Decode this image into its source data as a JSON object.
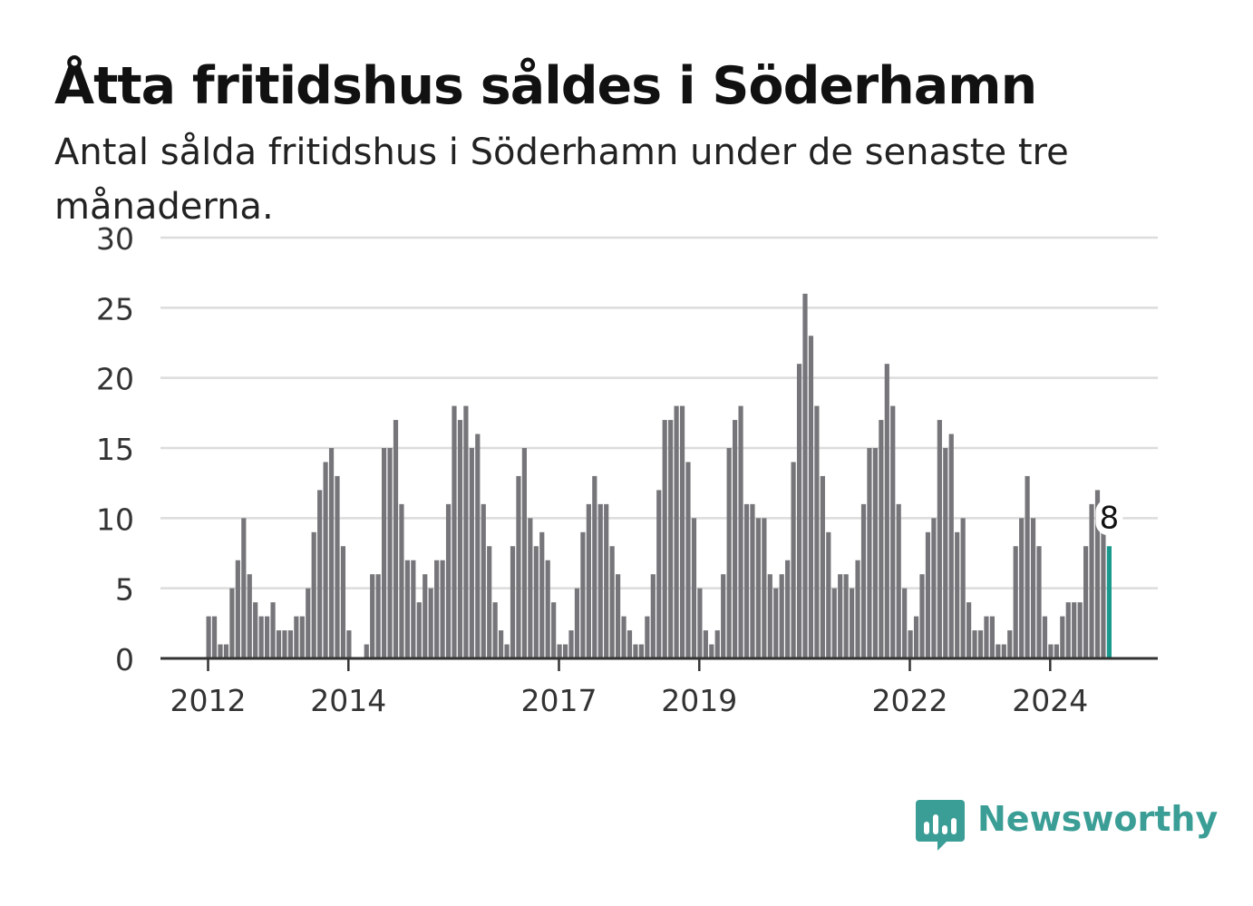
{
  "title": "Åtta fritidshus såldes i Söderhamn",
  "subtitle": "Antal sålda fritidshus i Söderhamn under de senaste tre månaderna.",
  "brand": {
    "name": "Newsworthy",
    "color": "#3a9e96",
    "icon": "newsworthy-chart-bubble-icon"
  },
  "colors": {
    "bar": "#76767a",
    "highlight": "#1a9a8e",
    "grid": "#dcdcdc",
    "axis": "#333333"
  },
  "chart_data": {
    "type": "bar",
    "title": "Åtta fritidshus såldes i Söderhamn",
    "xlabel": "",
    "ylabel": "",
    "ylim": [
      0,
      30
    ],
    "yticks": [
      0,
      5,
      10,
      15,
      20,
      25,
      30
    ],
    "grid": true,
    "x_ticks": [
      "2012",
      "2014",
      "2017",
      "2019",
      "2022",
      "2024"
    ],
    "x_tick_month_index": [
      0,
      24,
      60,
      84,
      120,
      144
    ],
    "start_month": "2012-01",
    "highlight_label": "8",
    "values": [
      3,
      3,
      1,
      1,
      5,
      7,
      10,
      6,
      4,
      3,
      3,
      4,
      2,
      2,
      2,
      3,
      3,
      5,
      9,
      12,
      14,
      15,
      13,
      8,
      2,
      0,
      0,
      1,
      6,
      6,
      15,
      15,
      17,
      11,
      7,
      7,
      4,
      6,
      5,
      7,
      7,
      11,
      18,
      17,
      18,
      15,
      16,
      11,
      8,
      4,
      2,
      1,
      8,
      13,
      15,
      10,
      8,
      9,
      7,
      4,
      1,
      1,
      2,
      5,
      9,
      11,
      13,
      11,
      11,
      8,
      6,
      3,
      2,
      1,
      1,
      3,
      6,
      12,
      17,
      17,
      18,
      18,
      14,
      10,
      5,
      2,
      1,
      2,
      6,
      15,
      17,
      18,
      11,
      11,
      10,
      10,
      6,
      5,
      6,
      7,
      14,
      21,
      26,
      23,
      18,
      13,
      9,
      5,
      6,
      6,
      5,
      7,
      11,
      15,
      15,
      17,
      21,
      18,
      11,
      5,
      2,
      3,
      6,
      9,
      10,
      17,
      15,
      16,
      9,
      10,
      4,
      2,
      2,
      3,
      3,
      1,
      1,
      2,
      8,
      10,
      13,
      10,
      8,
      3,
      1,
      1,
      3,
      4,
      4,
      4,
      8,
      11,
      12,
      10,
      8
    ]
  }
}
